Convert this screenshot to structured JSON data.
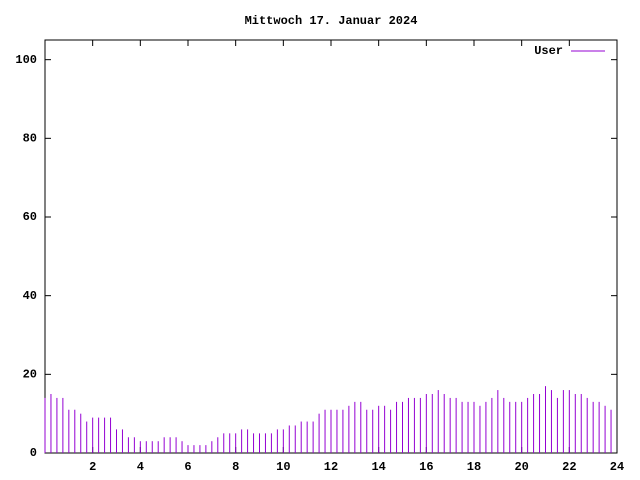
{
  "chart_data": {
    "type": "impulse",
    "title": "Mittwoch 17. Januar 2024",
    "x": [
      0,
      0.25,
      0.5,
      0.75,
      1,
      1.25,
      1.5,
      1.75,
      2,
      2.25,
      2.5,
      2.75,
      3,
      3.25,
      3.5,
      3.75,
      4,
      4.25,
      4.5,
      4.75,
      5,
      5.25,
      5.5,
      5.75,
      6,
      6.25,
      6.5,
      6.75,
      7,
      7.25,
      7.5,
      7.75,
      8,
      8.25,
      8.5,
      8.75,
      9,
      9.25,
      9.5,
      9.75,
      10,
      10.25,
      10.5,
      10.75,
      11,
      11.25,
      11.5,
      11.75,
      12,
      12.25,
      12.5,
      12.75,
      13,
      13.25,
      13.5,
      13.75,
      14,
      14.25,
      14.5,
      14.75,
      15,
      15.25,
      15.5,
      15.75,
      16,
      16.25,
      16.5,
      16.75,
      17,
      17.25,
      17.5,
      17.75,
      18,
      18.25,
      18.5,
      18.75,
      19,
      19.25,
      19.5,
      19.75,
      20,
      20.25,
      20.5,
      20.75,
      21,
      21.25,
      21.5,
      21.75,
      22,
      22.25,
      22.5,
      22.75,
      23,
      23.25,
      23.5,
      23.75
    ],
    "series": [
      {
        "name": "User",
        "color": "#9400d3",
        "values": [
          14,
          15,
          14,
          14,
          11,
          11,
          10,
          8,
          9,
          9,
          9,
          9,
          6,
          6,
          4,
          4,
          3,
          3,
          3,
          3,
          4,
          4,
          4,
          3,
          2,
          2,
          2,
          2,
          3,
          4,
          5,
          5,
          5,
          6,
          6,
          5,
          5,
          5,
          5,
          6,
          6,
          7,
          7,
          8,
          8,
          8,
          10,
          11,
          11,
          11,
          11,
          12,
          13,
          13,
          11,
          11,
          12,
          12,
          11,
          13,
          13,
          14,
          14,
          14,
          15,
          15,
          16,
          15,
          14,
          14,
          13,
          13,
          13,
          12,
          13,
          14,
          16,
          14,
          13,
          13,
          13,
          14,
          15,
          15,
          17,
          16,
          14,
          16,
          16,
          15,
          15,
          14,
          13,
          13,
          12,
          11
        ]
      }
    ],
    "xlim": [
      0,
      24
    ],
    "xticks": [
      2,
      4,
      6,
      8,
      10,
      12,
      14,
      16,
      18,
      20,
      22,
      24
    ],
    "ylim": [
      0,
      105
    ],
    "yticks": [
      0,
      20,
      40,
      60,
      80,
      100
    ],
    "legend": "top right"
  }
}
